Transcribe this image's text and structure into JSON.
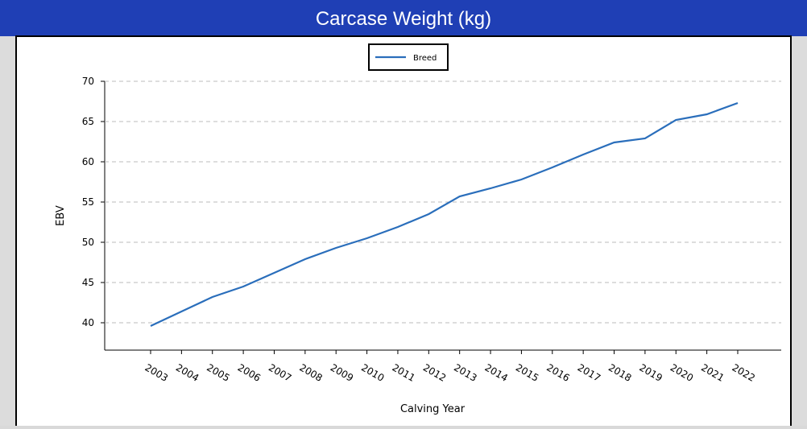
{
  "chart_data": {
    "type": "line",
    "title": "Carcase Weight (kg)",
    "xlabel": "Calving Year",
    "ylabel": "EBV",
    "categories": [
      "2003",
      "2004",
      "2005",
      "2006",
      "2007",
      "2008",
      "2009",
      "2010",
      "2011",
      "2012",
      "2013",
      "2014",
      "2015",
      "2016",
      "2017",
      "2018",
      "2019",
      "2020",
      "2021",
      "2022"
    ],
    "series": [
      {
        "name": "Breed",
        "color": "#2a6ebb",
        "values": [
          39.6,
          41.4,
          43.2,
          44.5,
          46.2,
          47.9,
          49.3,
          50.5,
          51.9,
          53.5,
          55.7,
          56.7,
          57.8,
          59.3,
          60.9,
          62.4,
          62.9,
          65.2,
          65.9,
          67.3
        ]
      }
    ],
    "ylim": [
      36.6,
      70
    ],
    "yticks": [
      40,
      45,
      50,
      55,
      60,
      65,
      70
    ],
    "grid": true,
    "legend": "top"
  }
}
